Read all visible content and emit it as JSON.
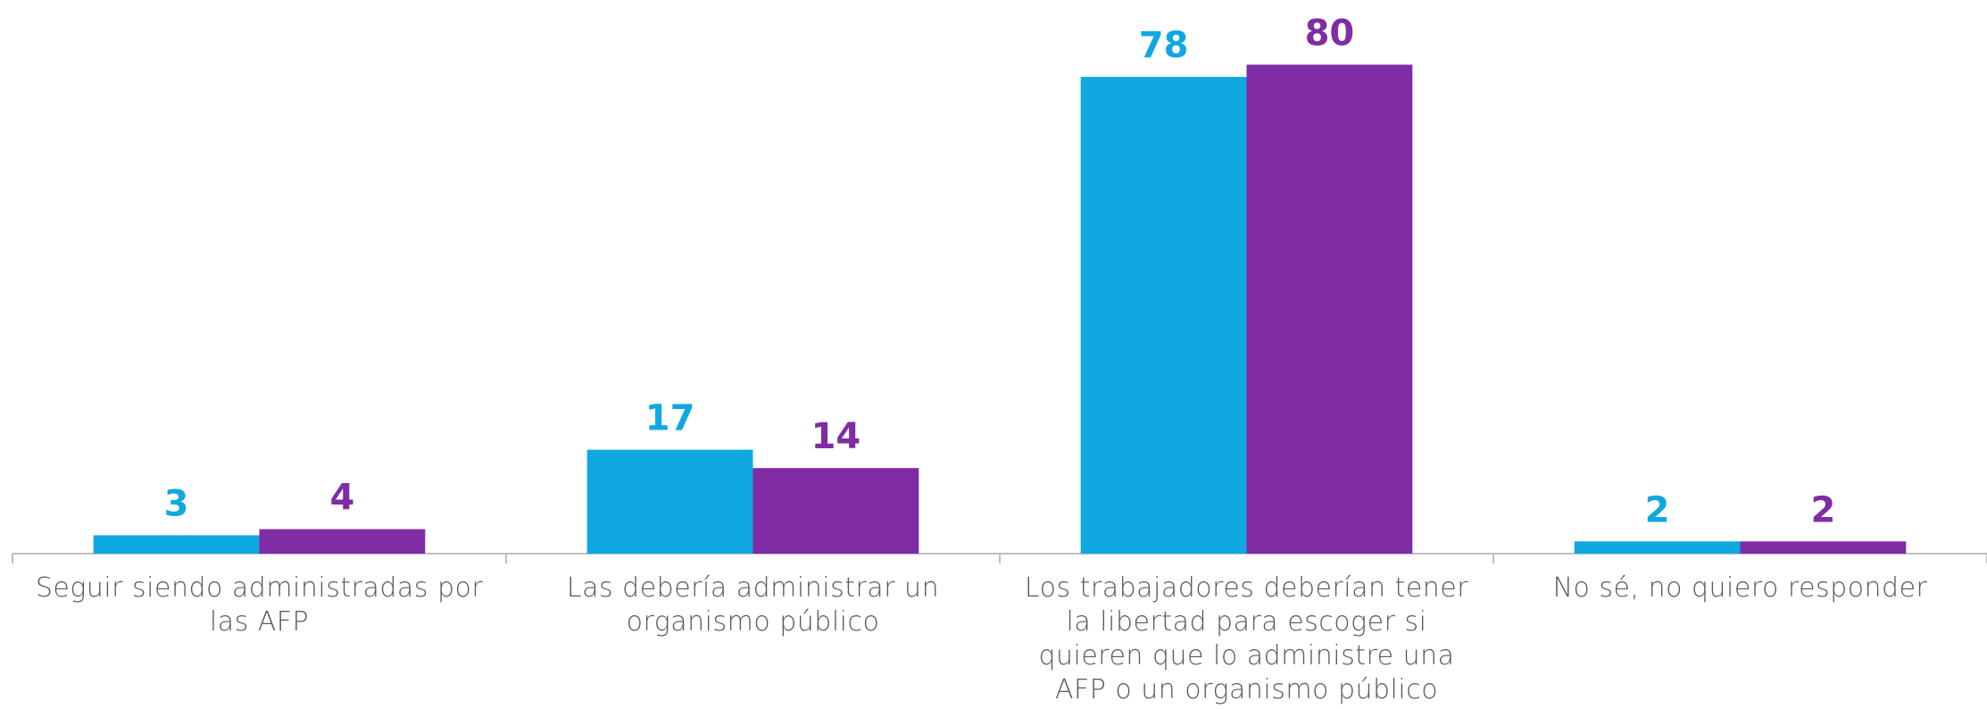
{
  "chart_data": {
    "type": "bar",
    "categories": [
      "Seguir siendo administradas por las AFP",
      "Las debería administrar un organismo público",
      "Los trabajadores deberían tener la libertad para escoger si quieren que lo administre una AFP o un organismo público",
      "No sé, no quiero responder"
    ],
    "series": [
      {
        "color": "#0fa8e0",
        "values": [
          3,
          17,
          78,
          2
        ]
      },
      {
        "color": "#7f2ca5",
        "values": [
          4,
          14,
          80,
          2
        ]
      }
    ],
    "ylim": [
      0,
      90
    ]
  }
}
